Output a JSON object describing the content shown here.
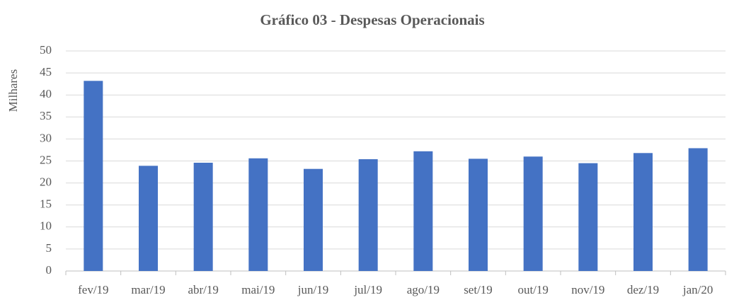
{
  "chart_data": {
    "type": "bar",
    "title": "Gráfico 03 - Despesas Operacionais",
    "y_label": "Milhares",
    "categories": [
      "fev/19",
      "mar/19",
      "abr/19",
      "mai/19",
      "jun/19",
      "jul/19",
      "ago/19",
      "set/19",
      "out/19",
      "nov/19",
      "dez/19",
      "jan/20"
    ],
    "values": [
      43.2,
      23.9,
      24.6,
      25.6,
      23.2,
      25.4,
      27.2,
      25.5,
      26.0,
      24.5,
      26.8,
      27.9
    ],
    "color": "#4472c4",
    "ylim": [
      0,
      50
    ],
    "yticks": [
      0,
      5,
      10,
      15,
      20,
      25,
      30,
      35,
      40,
      45,
      50
    ],
    "grid": true
  }
}
